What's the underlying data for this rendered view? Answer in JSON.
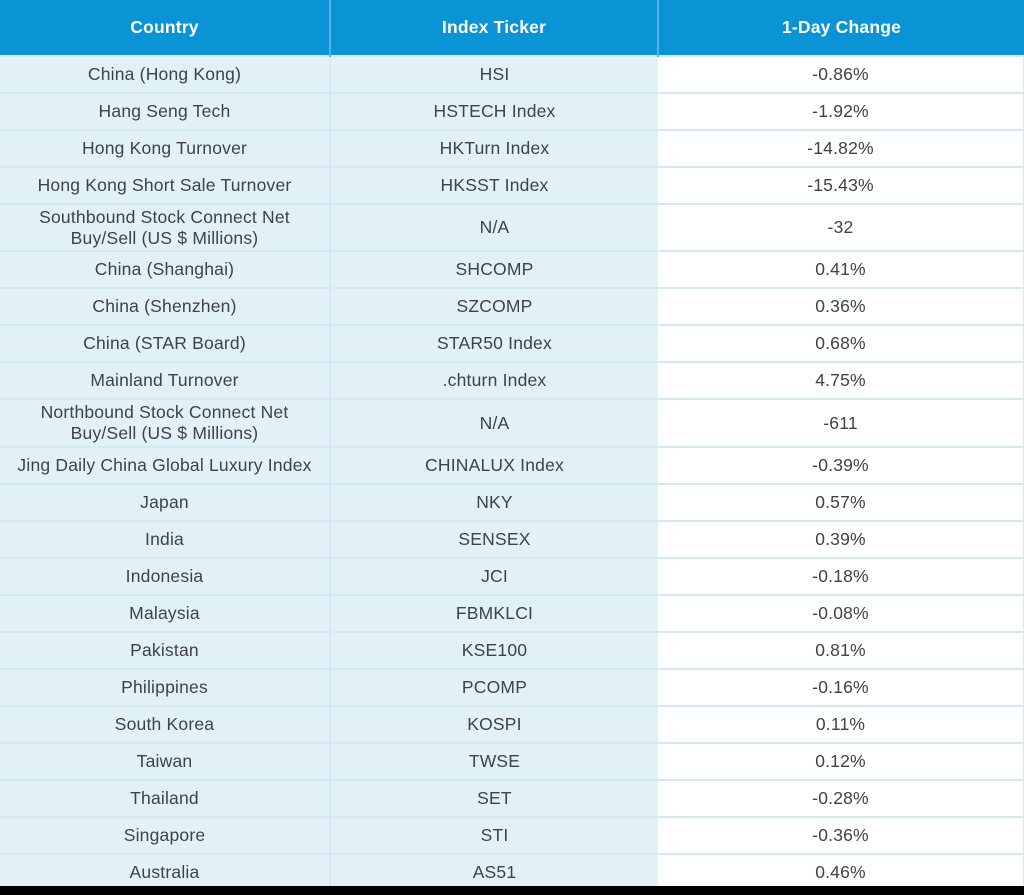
{
  "chart_data": {
    "type": "table",
    "columns": [
      "Country",
      "Index Ticker",
      "1-Day Change"
    ],
    "rows": [
      {
        "country": "China (Hong Kong)",
        "ticker": "HSI",
        "change": "-0.86%"
      },
      {
        "country": "Hang Seng Tech",
        "ticker": "HSTECH Index",
        "change": "-1.92%"
      },
      {
        "country": "Hong Kong Turnover",
        "ticker": "HKTurn Index",
        "change": "-14.82%"
      },
      {
        "country": "Hong Kong Short Sale Turnover",
        "ticker": "HKSST Index",
        "change": "-15.43%"
      },
      {
        "country": "Southbound Stock Connect Net\nBuy/Sell (US $ Millions)",
        "ticker": "N/A",
        "change": "-32"
      },
      {
        "country": "China (Shanghai)",
        "ticker": "SHCOMP",
        "change": "0.41%"
      },
      {
        "country": "China (Shenzhen)",
        "ticker": "SZCOMP",
        "change": "0.36%"
      },
      {
        "country": "China (STAR Board)",
        "ticker": "STAR50 Index",
        "change": "0.68%"
      },
      {
        "country": "Mainland Turnover",
        "ticker": ".chturn Index",
        "change": "4.75%"
      },
      {
        "country": "Northbound Stock Connect Net\nBuy/Sell (US $ Millions)",
        "ticker": "N/A",
        "change": "-611"
      },
      {
        "country": "Jing Daily China Global Luxury Index",
        "ticker": "CHINALUX Index",
        "change": "-0.39%"
      },
      {
        "country": "Japan",
        "ticker": "NKY",
        "change": "0.57%"
      },
      {
        "country": "India",
        "ticker": "SENSEX",
        "change": "0.39%"
      },
      {
        "country": "Indonesia",
        "ticker": "JCI",
        "change": "-0.18%"
      },
      {
        "country": "Malaysia",
        "ticker": "FBMKLCI",
        "change": "-0.08%"
      },
      {
        "country": "Pakistan",
        "ticker": "KSE100",
        "change": "0.81%"
      },
      {
        "country": "Philippines",
        "ticker": "PCOMP",
        "change": "-0.16%"
      },
      {
        "country": "South Korea",
        "ticker": "KOSPI",
        "change": "0.11%"
      },
      {
        "country": "Taiwan",
        "ticker": "TWSE",
        "change": "0.12%"
      },
      {
        "country": "Thailand",
        "ticker": "SET",
        "change": "-0.28%"
      },
      {
        "country": "Singapore",
        "ticker": "STI",
        "change": "-0.36%"
      },
      {
        "country": "Australia",
        "ticker": "AS51",
        "change": "0.46%"
      }
    ]
  },
  "colors": {
    "header_bg": "#0a94d6",
    "header_text": "#ffffff",
    "header_divider": "#53b4e2",
    "row_bg": "#e2f1f8",
    "value_column_bg": "#ffffff",
    "grid_line": "#d3eaf4",
    "body_text": "#3d4347",
    "bottom_bar": "#000000"
  }
}
